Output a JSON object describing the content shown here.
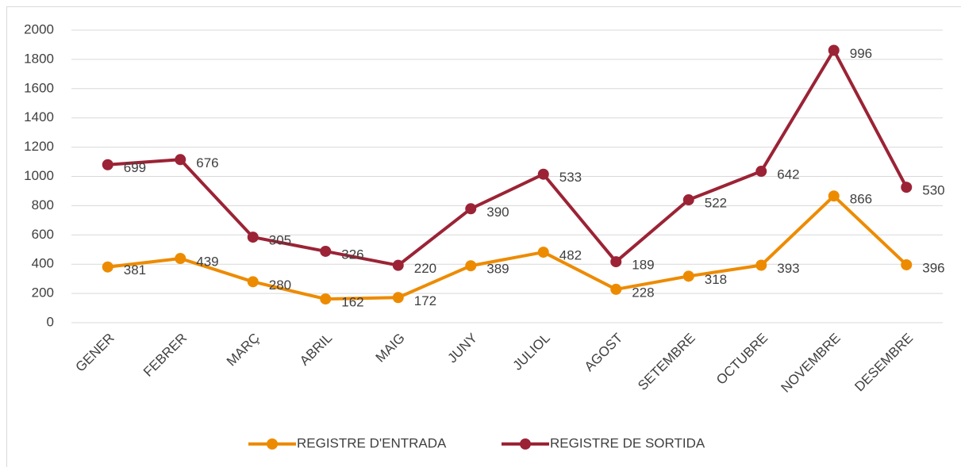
{
  "chart_data": {
    "type": "line",
    "stacked": true,
    "categories": [
      "GENER",
      "FEBRER",
      "MARÇ",
      "ABRIL",
      "MAIG",
      "JUNY",
      "JULIOL",
      "AGOST",
      "SETEMBRE",
      "OCTUBRE",
      "NOVEMBRE",
      "DESEMBRE"
    ],
    "series": [
      {
        "name": "REGISTRE D'ENTRADA",
        "color": "#ED8B00",
        "values": [
          381,
          439,
          280,
          162,
          172,
          389,
          482,
          228,
          318,
          393,
          866,
          396
        ]
      },
      {
        "name": "REGISTRE DE SORTIDA",
        "color": "#9B2335",
        "values": [
          699,
          676,
          305,
          326,
          220,
          390,
          533,
          189,
          522,
          642,
          996,
          530
        ]
      }
    ],
    "ylim": [
      0,
      2000
    ],
    "yticks": [
      0,
      200,
      400,
      600,
      800,
      1000,
      1200,
      1400,
      1600,
      1800,
      2000
    ],
    "grid": true,
    "legend": "bottom",
    "data_labels": true
  }
}
